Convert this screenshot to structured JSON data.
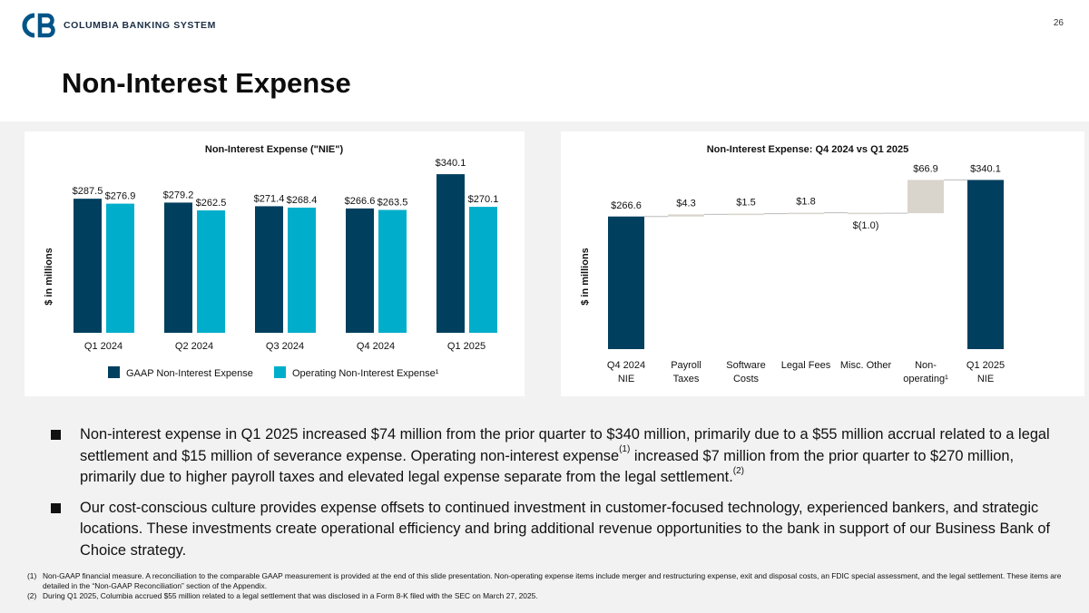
{
  "header": {
    "brand": "COLUMBIA BANKING SYSTEM",
    "page_number": "26",
    "title": "Non-Interest Expense"
  },
  "colors": {
    "gaap": "#003f5e",
    "operating": "#00aecb",
    "nonop": "#d9d5cc",
    "connector": "#bcbcbc",
    "brand": "#005487"
  },
  "chart_data": [
    {
      "type": "bar",
      "title": "Non-Interest Expense (\"NIE\")",
      "ylabel": "$ in millions",
      "categories": [
        "Q1 2024",
        "Q2 2024",
        "Q3 2024",
        "Q4 2024",
        "Q1 2025"
      ],
      "series": [
        {
          "name": "GAAP Non-Interest Expense",
          "values": [
            287.5,
            279.2,
            271.4,
            266.6,
            340.1
          ],
          "labels": [
            "$287.5",
            "$279.2",
            "$271.4",
            "$266.6",
            "$340.1"
          ]
        },
        {
          "name": "Operating Non-Interest Expense¹",
          "values": [
            276.9,
            262.5,
            268.4,
            263.5,
            270.1
          ],
          "labels": [
            "$276.9",
            "$262.5",
            "$268.4",
            "$263.5",
            "$270.1"
          ]
        }
      ],
      "ylim": [
        0,
        350
      ],
      "grid": false,
      "legend": "bottom"
    },
    {
      "type": "bar",
      "subtype": "waterfall",
      "title": "Non-Interest Expense: Q4 2024 vs Q1 2025",
      "ylabel": "$ in millions",
      "categories": [
        "Q4 2024 NIE",
        "Payroll Taxes",
        "Software Costs",
        "Legal Fees",
        "Misc. Other",
        "Non-operating¹",
        "Q1 2025 NIE"
      ],
      "category_lines": [
        [
          "Q4 2024",
          "NIE"
        ],
        [
          "Payroll",
          "Taxes"
        ],
        [
          "Software",
          "Costs"
        ],
        [
          "Legal Fees",
          ""
        ],
        [
          "Misc. Other",
          ""
        ],
        [
          "Non-",
          "operating¹"
        ],
        [
          "Q1 2025",
          "NIE"
        ]
      ],
      "values": [
        266.6,
        4.3,
        1.5,
        1.8,
        -1.0,
        66.9,
        340.1
      ],
      "labels": [
        "$266.6",
        "$4.3",
        "$1.5",
        "$1.8",
        "$(1.0)",
        "$66.9",
        "$340.1"
      ],
      "kinds": [
        "total",
        "delta",
        "delta",
        "delta",
        "delta",
        "delta",
        "total"
      ],
      "ylim": [
        0,
        350
      ],
      "grid": false
    }
  ],
  "bullets": [
    {
      "parts": [
        {
          "text": "Non-interest expense in Q1 2025 increased $74 million from the prior quarter to $340 million, primarily due to a $55 million accrual related to a legal settlement and $15 million of severance expense. Operating non-interest expense"
        },
        {
          "sup": "(1)"
        },
        {
          "text": " increased $7 million from the prior quarter to $270 million, primarily due to higher payroll taxes and elevated legal expense separate from the legal settlement."
        },
        {
          "sup": "(2)"
        }
      ]
    },
    {
      "parts": [
        {
          "text": "Our cost-conscious culture provides expense offsets to continued investment in customer-focused technology, experienced bankers, and strategic locations. These investments create operational efficiency and bring additional revenue opportunities to the bank in support of our Business Bank of Choice strategy."
        }
      ]
    }
  ],
  "footnotes": [
    {
      "num": "(1)",
      "text": "Non-GAAP financial measure. A reconciliation to the comparable GAAP measurement is provided at the end of this slide presentation. Non-operating expense items include merger and restructuring expense, exit and disposal costs, an FDIC special assessment, and the legal settlement. These items are detailed in the “Non-GAAP Reconciliation” section of the Appendix."
    },
    {
      "num": "(2)",
      "text": "During Q1 2025, Columbia accrued $55 million related to a legal settlement that was disclosed in a Form 8-K filed with the SEC on March 27, 2025."
    }
  ]
}
